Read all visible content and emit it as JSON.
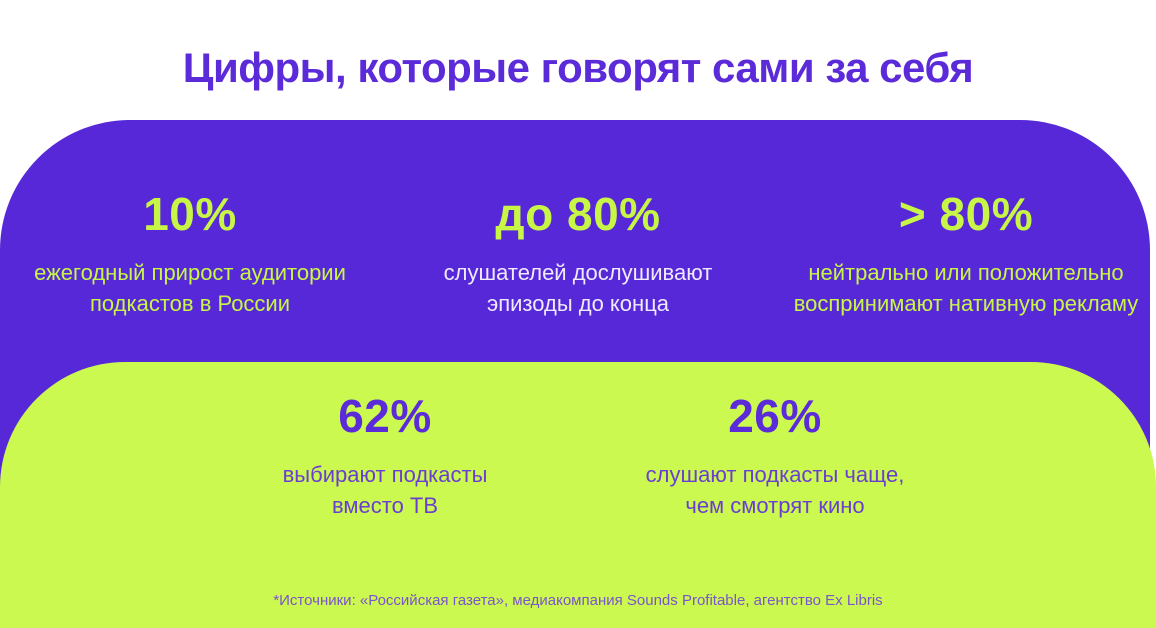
{
  "slide": {
    "title": "Цифры, которые говорят сами за себя",
    "colors": {
      "background": "#ffffff",
      "purple_panel": "#5728d8",
      "green_panel": "#cbf94f",
      "title_text": "#5c2bd9",
      "lime_text": "#c8f647",
      "white_text": "#efeafc",
      "purple_stat_text": "#5c2bd9",
      "footnote_text": "#7b55cb"
    },
    "purple_stats": [
      {
        "value": "10%",
        "label_line1": "ежегодный прирост аудитории",
        "label_line2": "подкастов в России"
      },
      {
        "value": "до 80%",
        "label_line1": "слушателей дослушивают",
        "label_line2": "эпизоды до конца"
      },
      {
        "value": "> 80%",
        "label_line1": "нейтрально или положительно",
        "label_line2": "воспринимают нативную рекламу"
      }
    ],
    "green_stats": [
      {
        "value": "62%",
        "label_line1": "выбирают подкасты",
        "label_line2": "вместо ТВ"
      },
      {
        "value": "26%",
        "label_line1": "слушают подкасты чаще,",
        "label_line2": "чем смотрят кино"
      }
    ],
    "footnote": "*Источники: «Российская газета», медиакомпания Sounds Profitable, агентство Ex Libris"
  }
}
